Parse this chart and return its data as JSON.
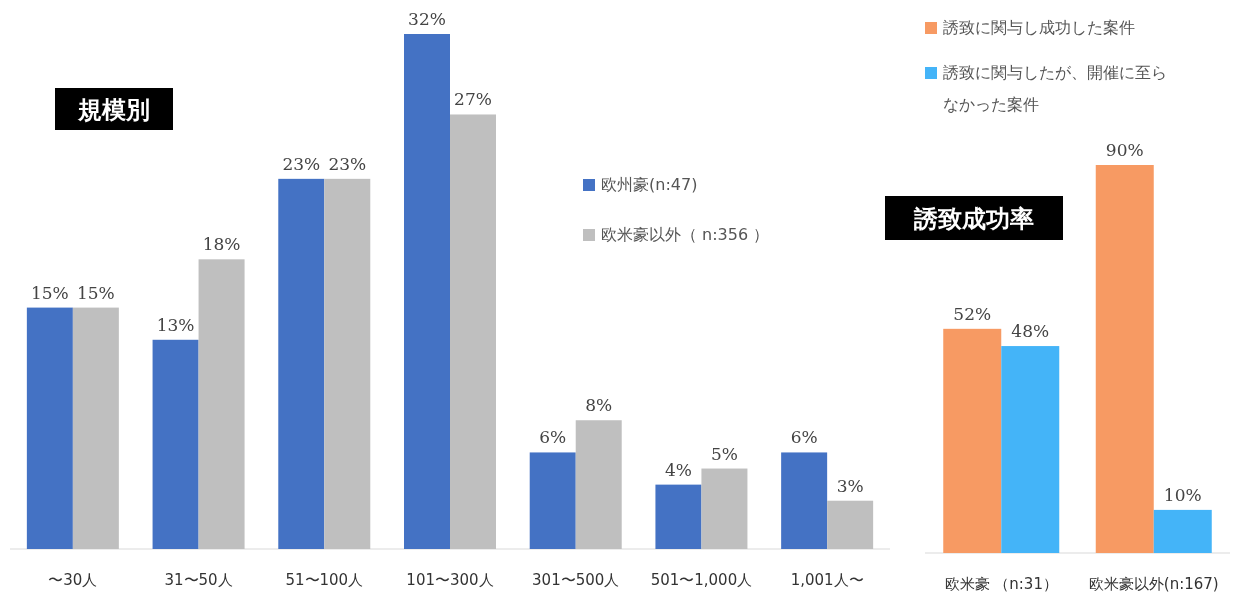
{
  "chart_data": [
    {
      "type": "bar",
      "title": "規模別",
      "categories": [
        "〜30人",
        "31〜50人",
        "51〜100人",
        "101〜300人",
        "301〜500人",
        "501〜1,000人",
        "1,001人〜"
      ],
      "legend": "right",
      "series": [
        {
          "name": "欧州豪(n:47)",
          "color": "#4472c4",
          "values": [
            15,
            13,
            23,
            32,
            6,
            4,
            6
          ],
          "value_labels": [
            "15%",
            "13%",
            "23%",
            "32%",
            "6%",
            "4%",
            "6%"
          ]
        },
        {
          "name": "欧米豪以外（ n:356 ）",
          "color": "#bfbfbf",
          "values": [
            15,
            18,
            23,
            27,
            8,
            5,
            3
          ],
          "value_labels": [
            "15%",
            "18%",
            "23%",
            "27%",
            "8%",
            "5%",
            "3%"
          ]
        }
      ]
    },
    {
      "type": "bar",
      "title": "誘致成功率",
      "categories": [
        "欧米豪 （n:31）",
        "欧米豪以外(n:167)"
      ],
      "legend": "top",
      "series": [
        {
          "name": "誘致に関与し成功した案件",
          "color": "#f79a63",
          "values": [
            52,
            90
          ],
          "value_labels": [
            "52%",
            "90%"
          ]
        },
        {
          "name": "誘致に関与したが、開催に至らなかった案件",
          "color": "#44b4f8",
          "values": [
            48,
            10
          ],
          "value_labels": [
            "48%",
            "10%"
          ]
        }
      ]
    }
  ]
}
